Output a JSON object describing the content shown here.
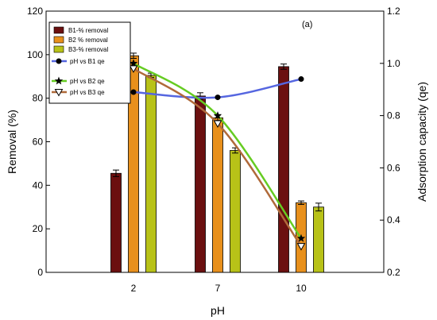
{
  "chart_data": {
    "type": "bar",
    "categories": [
      "2",
      "7",
      "10"
    ],
    "xlabel": "pH",
    "ylabel": "Removal (%)",
    "y2label": "Adsorption capacity (qe)",
    "annotation": "(a)",
    "ylim": [
      0,
      120
    ],
    "y2lim": [
      0.2,
      1.2
    ],
    "yticks": [
      "0",
      "20",
      "40",
      "60",
      "80",
      "100",
      "120"
    ],
    "y2ticks": [
      "0.2",
      "0.4",
      "0.6",
      "0.8",
      "1.0",
      "1.2"
    ],
    "bar_series": [
      {
        "name": "B1-% removal",
        "color": "#6b1010",
        "values": [
          45.5,
          81.0,
          94.5
        ],
        "errors": [
          1.5,
          1.5,
          1.2
        ]
      },
      {
        "name": "B2 % removal",
        "color": "#e8901c",
        "values": [
          99.5,
          71.0,
          32.0
        ],
        "errors": [
          1.2,
          1.2,
          0.8
        ]
      },
      {
        "name": "B3-% removal",
        "color": "#b8c218",
        "values": [
          90.5,
          56.0,
          30.0
        ],
        "errors": [
          1.0,
          1.2,
          1.8
        ]
      }
    ],
    "line_series": [
      {
        "name": "pH vs B1 qe",
        "color": "#5566e0",
        "marker": "circle",
        "values": [
          0.89,
          0.87,
          0.94
        ]
      },
      {
        "name": "pH vs B2 qe",
        "color": "#66cc22",
        "marker": "star",
        "values": [
          1.0,
          0.8,
          0.33
        ]
      },
      {
        "name": "pH vs B3 qe",
        "color": "#b06a3a",
        "marker": "triangle-down",
        "values": [
          0.98,
          0.77,
          0.3
        ]
      }
    ],
    "legend_position": "top-left",
    "grid": false
  }
}
